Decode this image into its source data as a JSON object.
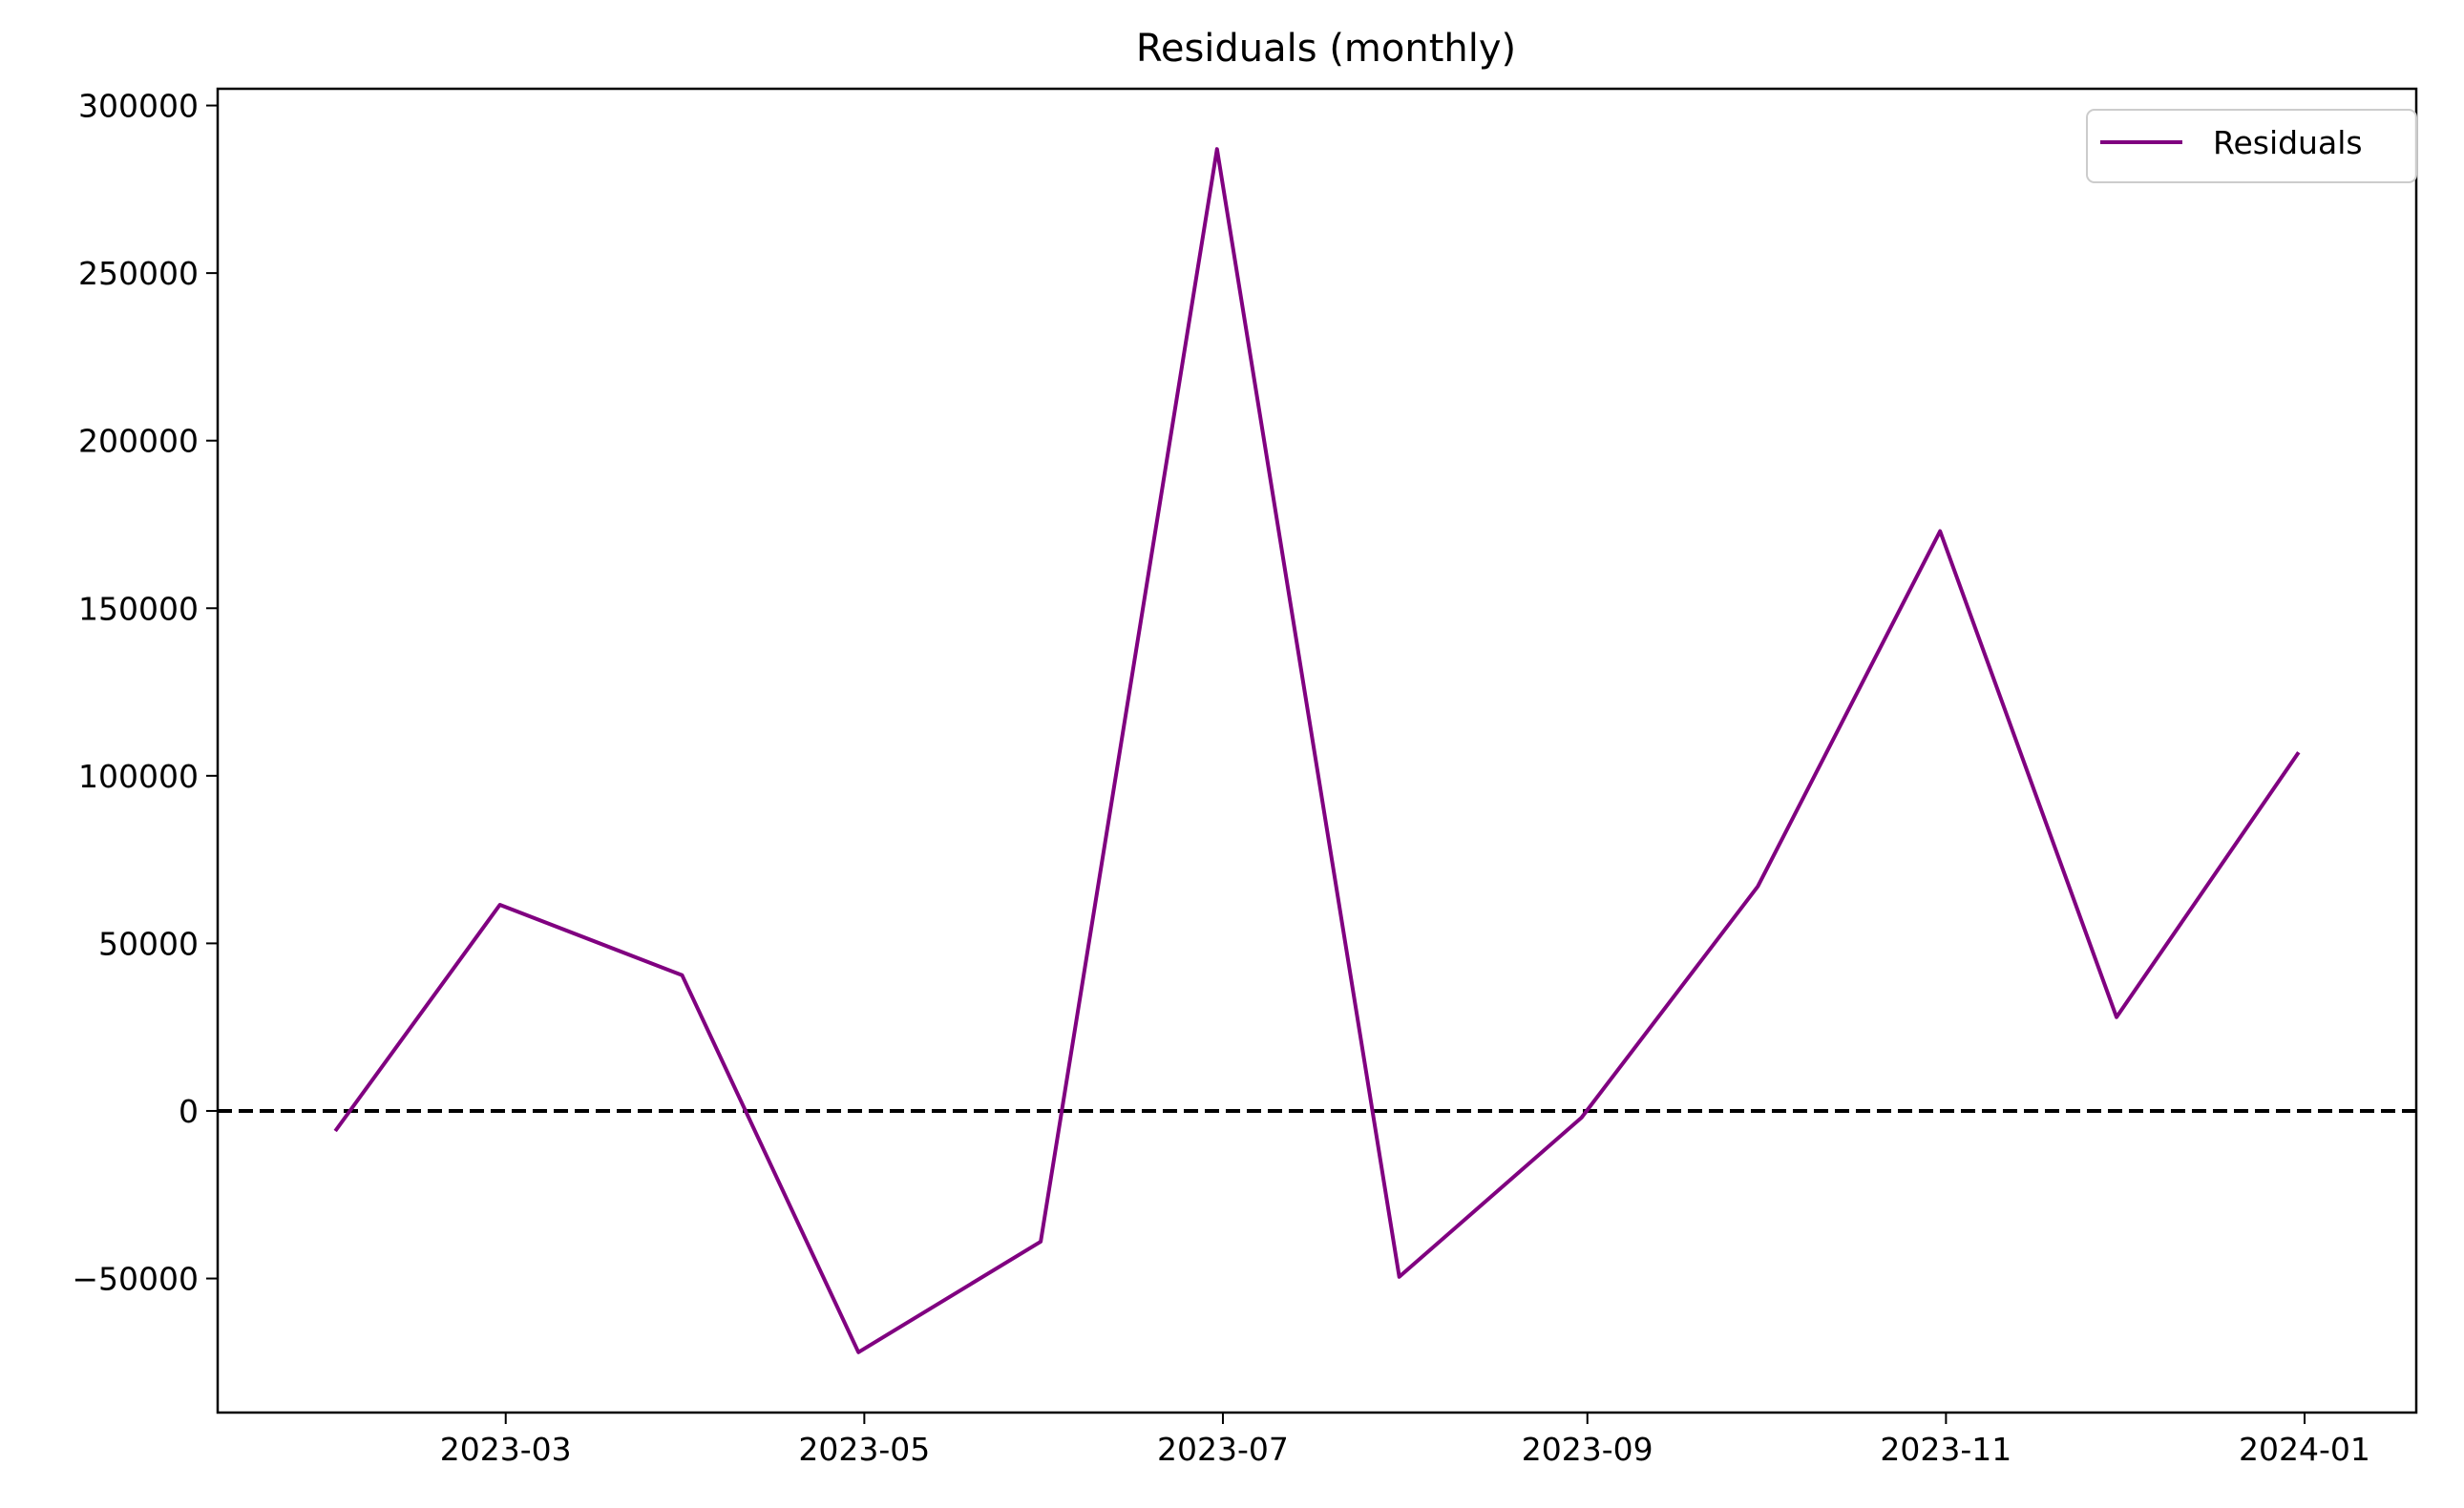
{
  "chart_data": {
    "type": "line",
    "title": "Residuals (monthly)",
    "xlabel": "",
    "ylabel": "",
    "x": [
      "2023-01-31",
      "2023-02-28",
      "2023-03-31",
      "2023-04-30",
      "2023-05-31",
      "2023-06-30",
      "2023-07-31",
      "2023-08-31",
      "2023-09-30",
      "2023-10-31",
      "2023-11-30",
      "2023-12-31"
    ],
    "series": [
      {
        "name": "Residuals",
        "color": "#800080",
        "values": [
          -6000,
          61500,
          40500,
          -72000,
          -39000,
          287000,
          -49500,
          -2000,
          67000,
          173000,
          28000,
          107000
        ]
      }
    ],
    "reference_line": {
      "y": 0,
      "style": "dashed",
      "color": "#000000"
    },
    "xlim": [
      "2023-01-11",
      "2024-01-20"
    ],
    "ylim": [
      -90000,
      305000
    ],
    "xticks": [
      "2023-03-01",
      "2023-05-01",
      "2023-07-01",
      "2023-09-01",
      "2023-11-01",
      "2024-01-01"
    ],
    "xtick_labels": [
      "2023-03",
      "2023-05",
      "2023-07",
      "2023-09",
      "2023-11",
      "2024-01"
    ],
    "yticks": [
      -50000,
      0,
      50000,
      100000,
      150000,
      200000,
      250000,
      300000
    ],
    "ytick_labels": [
      "−50000",
      "0",
      "50000",
      "100000",
      "150000",
      "200000",
      "250000",
      "300000"
    ],
    "legend": {
      "position": "top-right",
      "entries": [
        "Residuals"
      ]
    },
    "grid": false
  }
}
